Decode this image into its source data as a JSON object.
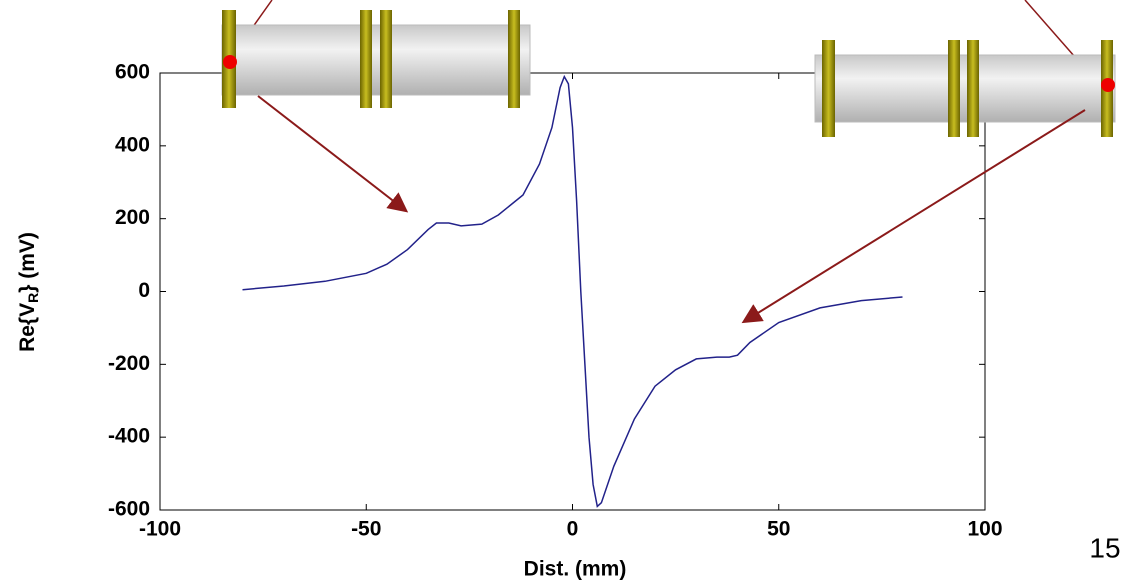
{
  "chart_data": {
    "type": "line",
    "xlabel": "Dist. (mm)",
    "ylabel": {
      "main": "Re{V",
      "sub": "R",
      "tail": "} (mV)"
    },
    "x": [
      -80,
      -70,
      -60,
      -50,
      -45,
      -40,
      -35,
      -33,
      -30,
      -27,
      -22,
      -18,
      -12,
      -8,
      -5,
      -3,
      -2,
      -1,
      0,
      1,
      2,
      3,
      4,
      5,
      6,
      7,
      10,
      15,
      20,
      25,
      30,
      35,
      38,
      40,
      43,
      50,
      60,
      70,
      80
    ],
    "series": [
      {
        "color": "#22228a",
        "values": [
          5,
          15,
          28,
          50,
          75,
          115,
          170,
          188,
          188,
          180,
          185,
          210,
          265,
          350,
          450,
          560,
          590,
          570,
          450,
          250,
          0,
          -200,
          -400,
          -530,
          -590,
          -580,
          -480,
          -350,
          -260,
          -215,
          -185,
          -180,
          -180,
          -175,
          -140,
          -85,
          -45,
          -25,
          -15
        ]
      }
    ],
    "xlim": [
      -100,
      100
    ],
    "xticks": [
      -100,
      -50,
      0,
      50,
      100
    ],
    "ylim": [
      -600,
      600
    ],
    "yticks": [
      -600,
      -400,
      -200,
      0,
      200,
      400,
      600
    ]
  },
  "page_number": "15"
}
